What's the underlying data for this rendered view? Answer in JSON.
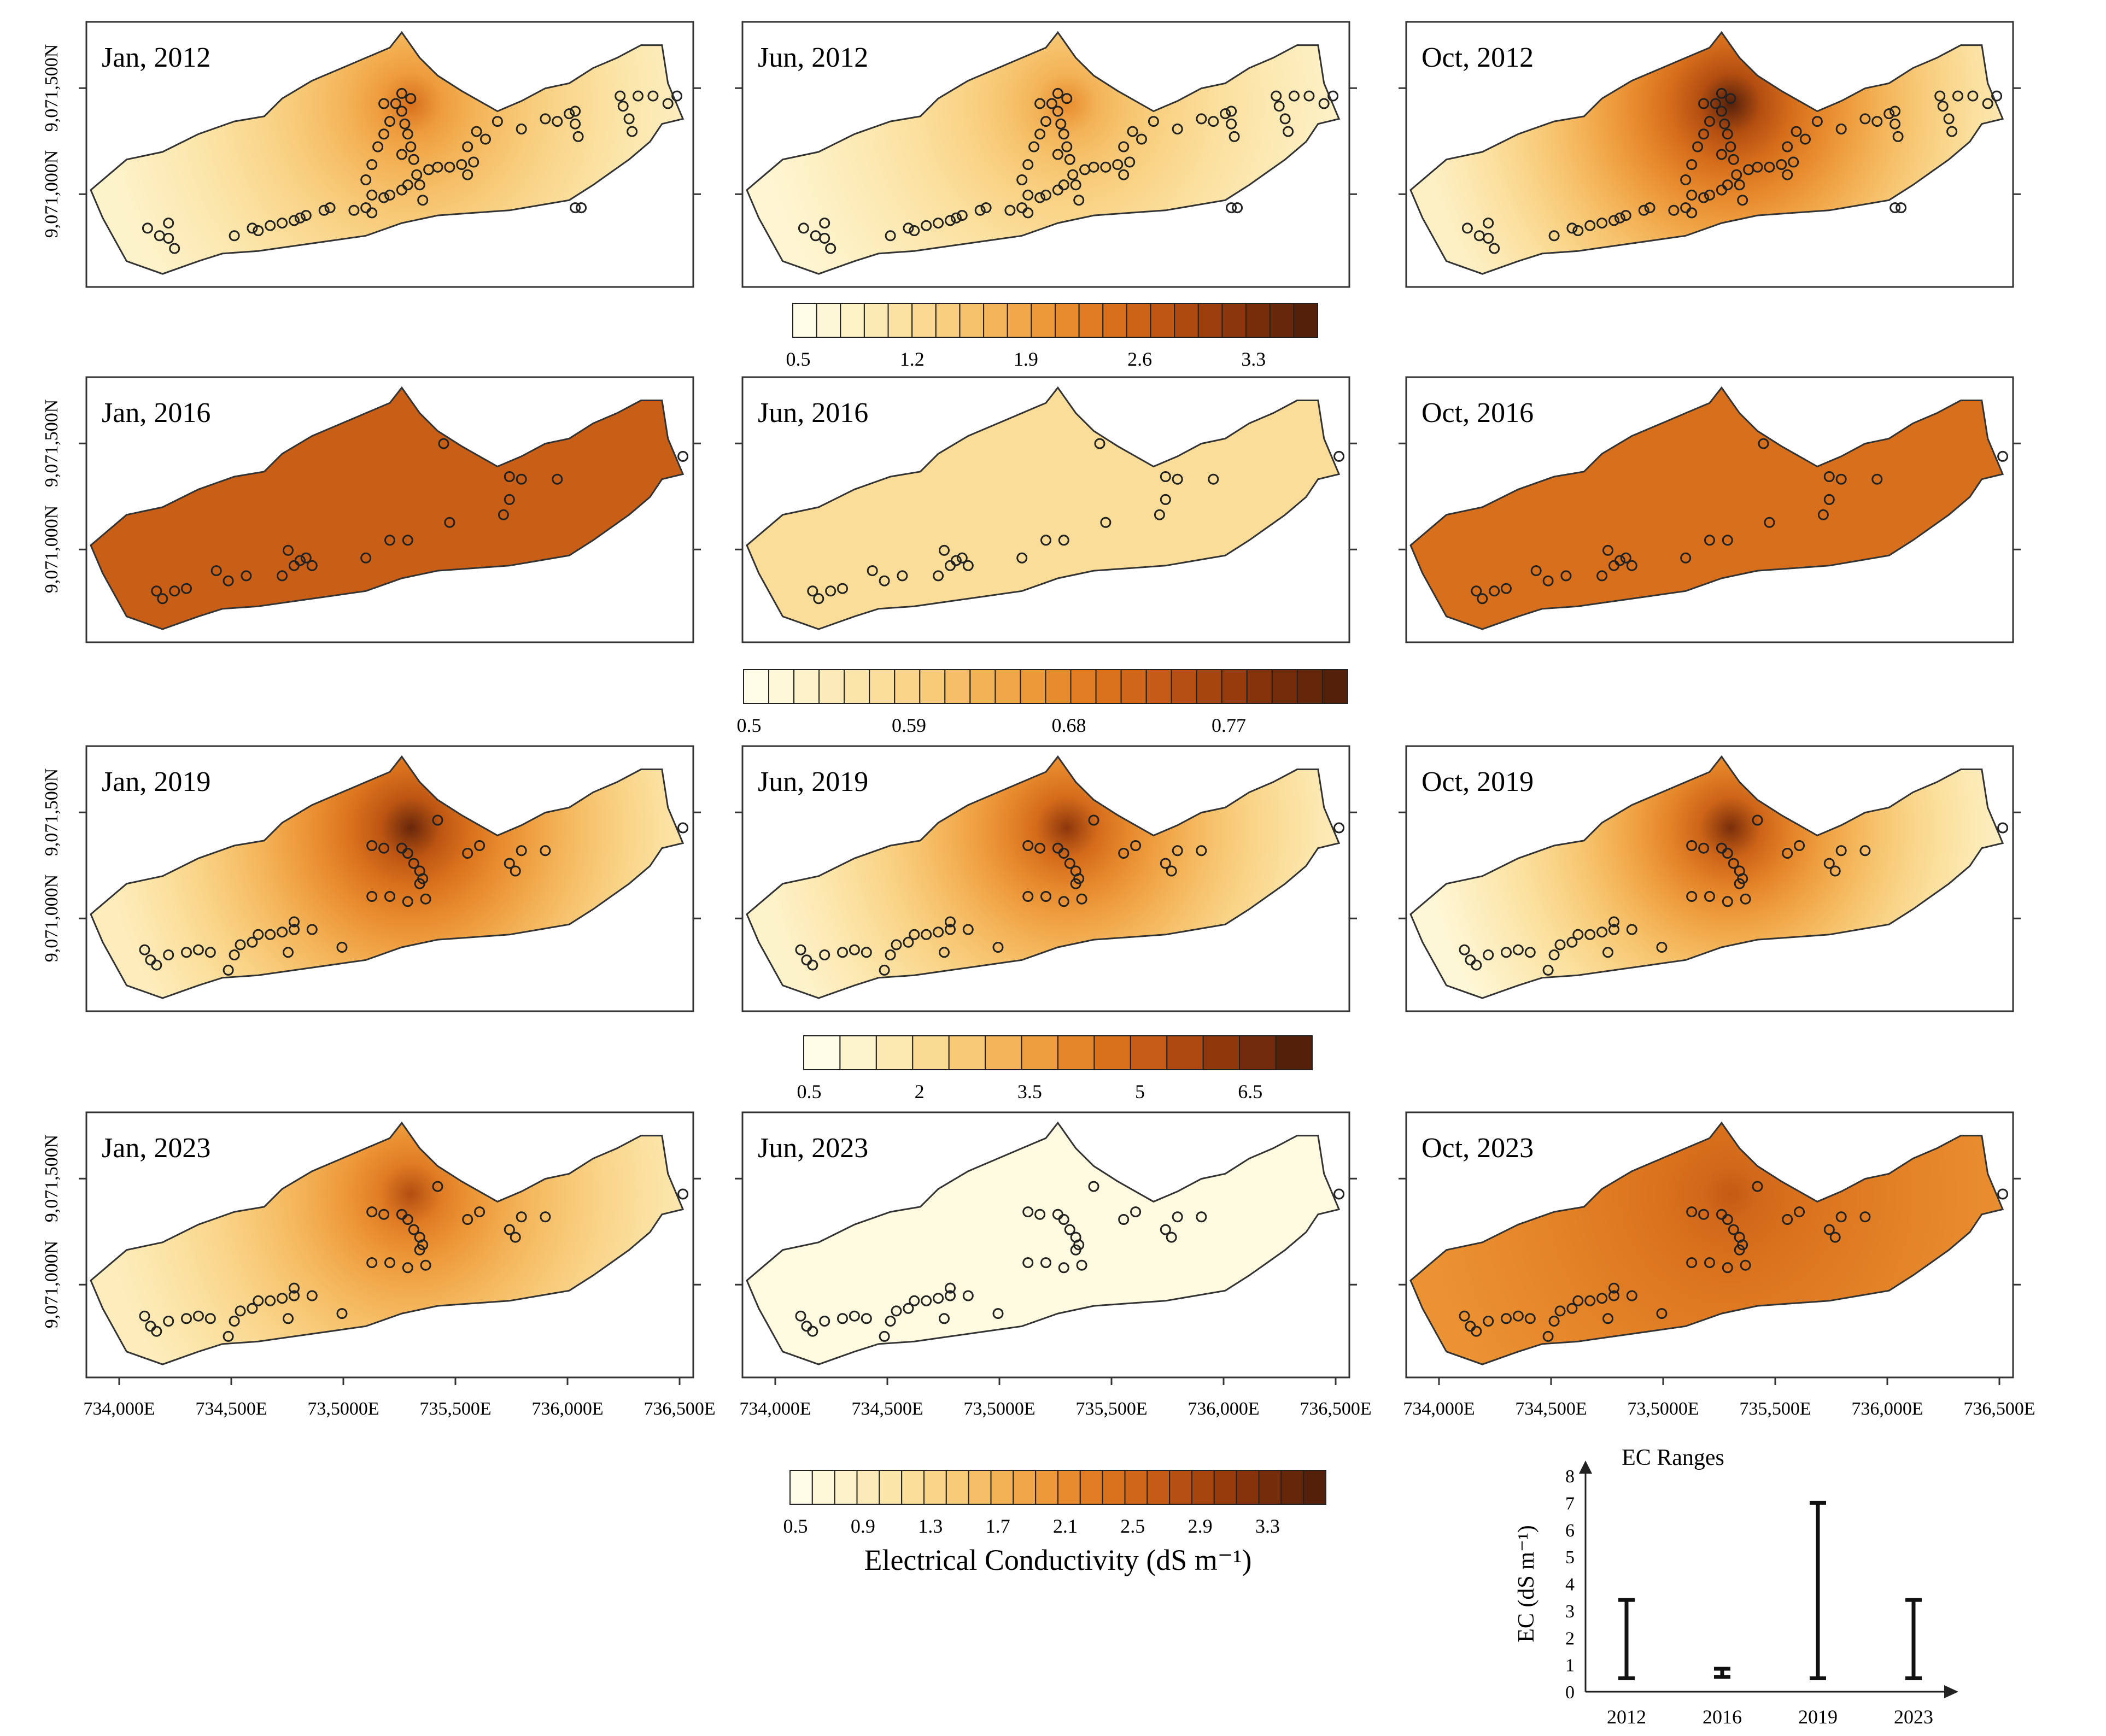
{
  "panels": [
    {
      "id": "jan-2012",
      "label": "Jan, 2012",
      "year": "2012",
      "season": "jan",
      "hot_strength": 0.62,
      "base_level": 0.08
    },
    {
      "id": "jun-2012",
      "label": "Jun, 2012",
      "year": "2012",
      "season": "jun",
      "hot_strength": 0.52,
      "base_level": 0.06
    },
    {
      "id": "oct-2012",
      "label": "Oct, 2012",
      "year": "2012",
      "season": "oct",
      "hot_strength": 1.0,
      "base_level": 0.1
    },
    {
      "id": "jan-2016",
      "label": "Jan, 2016",
      "year": "2016",
      "season": "jan",
      "hot_strength": 0.15,
      "base_level": 0.68
    },
    {
      "id": "jun-2016",
      "label": "Jun, 2016",
      "year": "2016",
      "season": "jun",
      "hot_strength": 0.05,
      "base_level": 0.22
    },
    {
      "id": "oct-2016",
      "label": "Oct, 2016",
      "year": "2016",
      "season": "oct",
      "hot_strength": 0.1,
      "base_level": 0.62
    },
    {
      "id": "jan-2019",
      "label": "Jan, 2019",
      "year": "2019",
      "season": "jan",
      "hot_strength": 0.95,
      "base_level": 0.12
    },
    {
      "id": "jun-2019",
      "label": "Jun, 2019",
      "year": "2019",
      "season": "jun",
      "hot_strength": 0.85,
      "base_level": 0.08
    },
    {
      "id": "oct-2019",
      "label": "Oct, 2019",
      "year": "2019",
      "season": "oct",
      "hot_strength": 0.9,
      "base_level": 0.05
    },
    {
      "id": "jan-2023",
      "label": "Jan, 2023",
      "year": "2023",
      "season": "jan",
      "hot_strength": 0.75,
      "base_level": 0.12
    },
    {
      "id": "jun-2023",
      "label": "Jun, 2023",
      "year": "2023",
      "season": "jun",
      "hot_strength": 0.0,
      "base_level": 0.02
    },
    {
      "id": "oct-2023",
      "label": "Oct, 2023",
      "year": "2023",
      "season": "oct",
      "hot_strength": 0.7,
      "base_level": 0.5
    }
  ],
  "axes": {
    "y_ticks": [
      "9,071,500N",
      "9,071,000N"
    ],
    "x_ticks": [
      "734,000E",
      "734,500E",
      "73,5000E",
      "735,500E",
      "736,000E",
      "736,500E"
    ],
    "x_ticks_right": [
      "734,000E",
      "734,500E",
      "73,5000E",
      "735,500E",
      "736,000E",
      "736,500E"
    ]
  },
  "colorbars": [
    {
      "id": "cb-2012",
      "ticks": [
        "0.5",
        "1.2",
        "1.9",
        "2.6",
        "3.3"
      ],
      "steps": 22
    },
    {
      "id": "cb-2016",
      "ticks": [
        "0.5",
        "0.59",
        "0.68",
        "0.77"
      ],
      "steps": 24
    },
    {
      "id": "cb-2019",
      "ticks": [
        "0.5",
        "2",
        "3.5",
        "5",
        "6.5"
      ],
      "steps": 14
    },
    {
      "id": "cb-2023",
      "ticks": [
        "0.5",
        "0.9",
        "1.3",
        "1.7",
        "2.1",
        "2.5",
        "2.9",
        "3.3"
      ],
      "steps": 24,
      "title": "Electrical  Conductivity (dS m⁻¹)"
    }
  ],
  "colors": {
    "ramp": [
      "#fffde7",
      "#fdf0c4",
      "#fbe1a0",
      "#f8cc7a",
      "#f3b053",
      "#eb9232",
      "#dc741e",
      "#c45a14",
      "#a1400e",
      "#7a2e0a",
      "#55200a"
    ],
    "outline": "#333333",
    "marker": "#222222"
  },
  "chart_data": {
    "type": "range",
    "title": "EC Ranges",
    "ylabel": "EC (dS m⁻¹)",
    "categories": [
      "2012",
      "2016",
      "2019",
      "2023"
    ],
    "min": [
      0.5,
      0.55,
      0.5,
      0.5
    ],
    "max": [
      3.4,
      0.85,
      7.0,
      3.4
    ],
    "ylim": [
      0,
      8
    ],
    "yticks": [
      "0",
      "1",
      "2",
      "3",
      "4",
      "5",
      "6",
      "7",
      "8"
    ]
  }
}
